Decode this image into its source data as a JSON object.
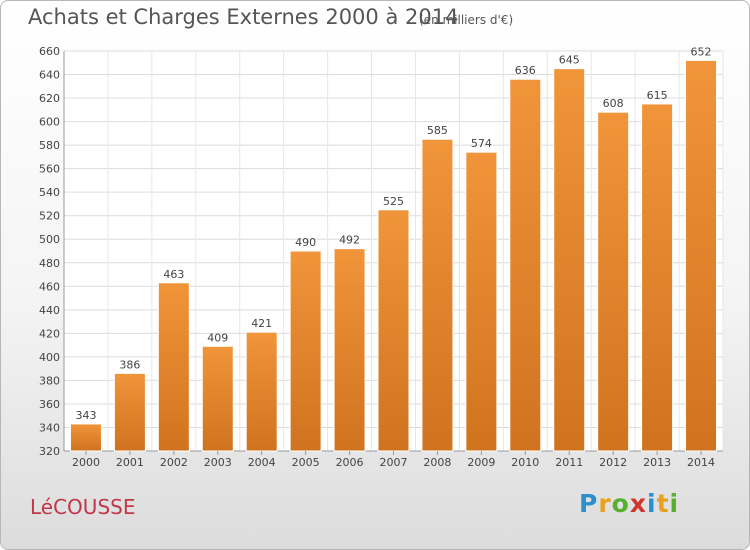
{
  "header": {
    "title": "Achats et Charges Externes 2000 à 2014",
    "subtitle": "(en milliers d'€)"
  },
  "footer": {
    "commune": "LéCOUSSE",
    "logo": {
      "letters": [
        "P",
        "r",
        "o",
        "x",
        "i",
        "t",
        "i"
      ],
      "colors": [
        "#2e8fcf",
        "#e8a020",
        "#56b02f",
        "#d0352a",
        "#2e8fcf",
        "#e8a020",
        "#56b02f"
      ]
    }
  },
  "chart_data": {
    "type": "bar",
    "title": "Achats et Charges Externes 2000 à 2014",
    "subtitle": "(en milliers d'€)",
    "categories": [
      "2000",
      "2001",
      "2002",
      "2003",
      "2004",
      "2005",
      "2006",
      "2007",
      "2008",
      "2009",
      "2010",
      "2011",
      "2012",
      "2013",
      "2014"
    ],
    "values": [
      343,
      386,
      463,
      409,
      421,
      490,
      492,
      525,
      585,
      574,
      636,
      645,
      608,
      615,
      652
    ],
    "ylim": [
      320,
      660
    ],
    "yticks": [
      320,
      340,
      360,
      380,
      400,
      420,
      440,
      460,
      480,
      500,
      520,
      540,
      560,
      580,
      600,
      620,
      640,
      660
    ],
    "grid": true,
    "bar_color": "#f0953a",
    "bar_color_dark": "#d0731f"
  }
}
